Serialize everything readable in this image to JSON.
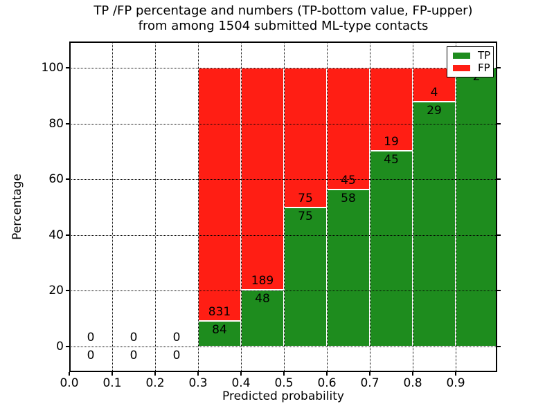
{
  "title": {
    "line1": "TP /FP percentage and numbers (TP-bottom value, FP-upper)",
    "line2": "from among 1504 submitted ML-type contacts"
  },
  "axes": {
    "xlabel": "Predicted probability",
    "ylabel": "Percentage",
    "x_tick_labels": [
      "0.0",
      "0.1",
      "0.2",
      "0.3",
      "0.4",
      "0.5",
      "0.6",
      "0.7",
      "0.8",
      "0.9"
    ],
    "y_tick_values": [
      0,
      20,
      40,
      60,
      80,
      100
    ]
  },
  "legend": {
    "items": [
      {
        "label": "TP",
        "color": "#1E8C1E"
      },
      {
        "label": "FP",
        "color": "#FF1E14"
      }
    ]
  },
  "chart_data": {
    "type": "bar",
    "stacked": true,
    "normalization": "percent of bin total (TP bottom, FP upper)",
    "title": "TP /FP percentage and numbers (TP-bottom value, FP-upper) from among 1504 submitted ML-type contacts",
    "xlabel": "Predicted probability",
    "ylabel": "Percentage",
    "bin_edges": [
      0.0,
      0.1,
      0.2,
      0.3,
      0.4,
      0.5,
      0.6,
      0.7,
      0.8,
      0.9,
      1.0
    ],
    "series": [
      {
        "name": "TP",
        "color": "#1E8C1E",
        "counts": [
          0,
          0,
          0,
          84,
          48,
          75,
          58,
          45,
          29,
          2
        ]
      },
      {
        "name": "FP",
        "color": "#FF1E14",
        "counts": [
          0,
          0,
          0,
          831,
          189,
          75,
          45,
          19,
          4,
          0
        ]
      }
    ],
    "tp_percent_by_bin": [
      null,
      null,
      null,
      9.2,
      20.3,
      50.0,
      56.3,
      70.3,
      87.9,
      100.0
    ],
    "total_contacts": 1504,
    "xlim": [
      0.0,
      1.0
    ],
    "ylim": [
      -9.3,
      109.4
    ],
    "grid": "dotted black, drawn above bars",
    "bar_edge_color": "#ffffff",
    "legend_position": "upper right"
  }
}
